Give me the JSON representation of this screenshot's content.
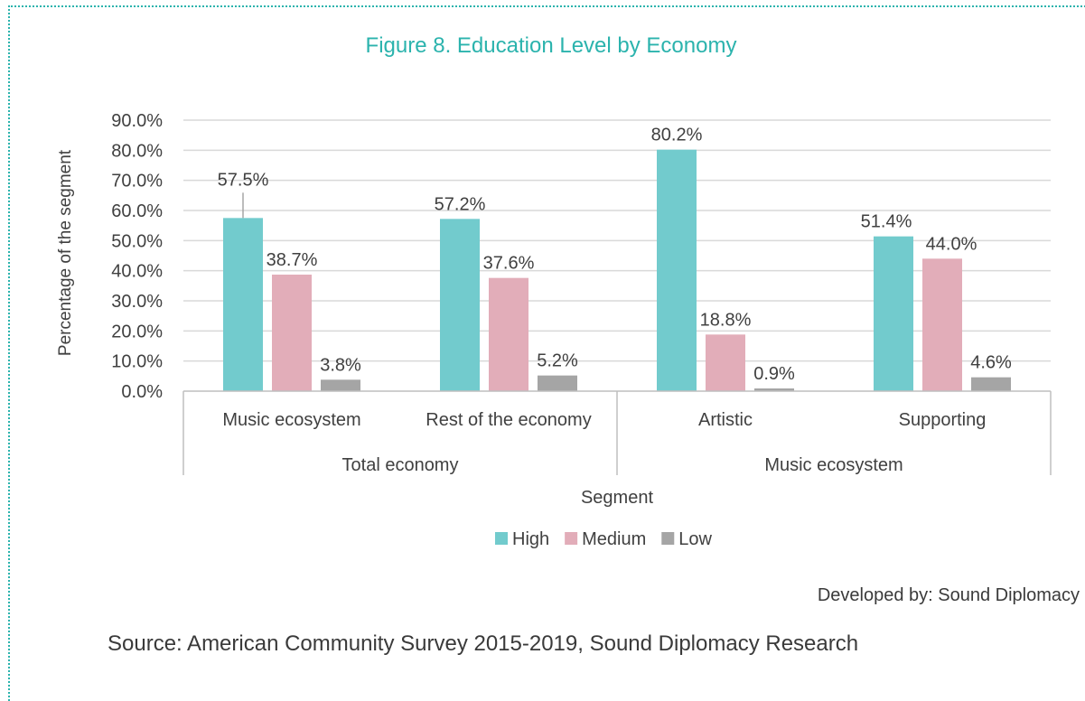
{
  "chart_data": {
    "type": "bar",
    "title": "Figure 8. Education Level by Economy",
    "xlabel": "Segment",
    "ylabel": "Percentage of the segment",
    "ylim": [
      0,
      90
    ],
    "yticks": [
      "0.0%",
      "10.0%",
      "20.0%",
      "30.0%",
      "40.0%",
      "50.0%",
      "60.0%",
      "70.0%",
      "80.0%",
      "90.0%"
    ],
    "categories": [
      "Music ecosystem",
      "Rest of the economy",
      "Artistic",
      "Supporting"
    ],
    "groups": [
      {
        "label": "Total economy",
        "categories": [
          "Music ecosystem",
          "Rest of the economy"
        ]
      },
      {
        "label": "Music ecosystem",
        "categories": [
          "Artistic",
          "Supporting"
        ]
      }
    ],
    "series": [
      {
        "name": "High",
        "color": "#72cbcd",
        "values": [
          57.5,
          57.2,
          80.2,
          51.4
        ],
        "labels": [
          "57.5%",
          "57.2%",
          "80.2%",
          "51.4%"
        ]
      },
      {
        "name": "Medium",
        "color": "#e2adb9",
        "values": [
          38.7,
          37.6,
          18.8,
          44.0
        ],
        "labels": [
          "38.7%",
          "37.6%",
          "18.8%",
          "44.0%"
        ]
      },
      {
        "name": "Low",
        "color": "#a5a5a5",
        "values": [
          3.8,
          5.2,
          0.9,
          4.6
        ],
        "labels": [
          "3.8%",
          "5.2%",
          "0.9%",
          "4.6%"
        ]
      }
    ],
    "grid": true,
    "legend": "bottom"
  },
  "footer": {
    "credit": "Developed by: Sound Diplomacy",
    "source": "Source: American Community Survey 2015-2019, Sound Diplomacy Research"
  }
}
